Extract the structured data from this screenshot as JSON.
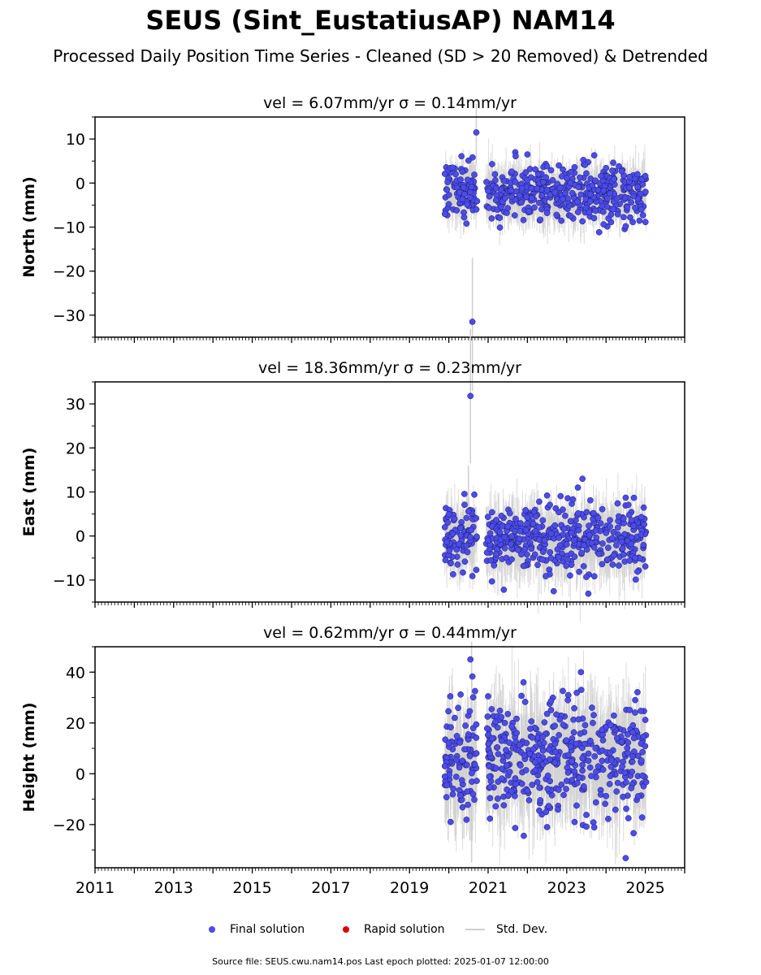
{
  "title": "SEUS (Sint_EustatiusAP) NAM14",
  "subtitle": "Processed Daily Position Time Series - Cleaned (SD > 20 Removed) & Detrended",
  "legend": {
    "final": "Final solution",
    "rapid": "Rapid solution",
    "stddev": "Std. Dev."
  },
  "footer": "Source file: SEUS.cwu.nam14.pos  Last epoch plotted: 2025-01-07 12:00:00",
  "colors": {
    "final": "#4b4bf0",
    "rapid": "#dd0000",
    "stddev": "#cfcfcf"
  },
  "chart_data": [
    {
      "type": "scatter",
      "title": "vel = 6.07mm/yr   σ = 0.14mm/yr",
      "ylabel": "North (mm)",
      "xlim": [
        2011,
        2026
      ],
      "ylim": [
        -35,
        15
      ],
      "yticks": [
        10,
        0,
        -10,
        -20,
        -30
      ],
      "ytick_labels": [
        "10",
        "0",
        "−10",
        "−20",
        "−30"
      ],
      "points": [
        [
          2019.9,
          2.1
        ],
        [
          2019.95,
          -1.5
        ],
        [
          2020.0,
          -4.8
        ],
        [
          2020.1,
          3.5
        ],
        [
          2020.2,
          -6.2
        ],
        [
          2020.3,
          0.8
        ],
        [
          2020.4,
          -2.5
        ],
        [
          2020.45,
          -9.2
        ],
        [
          2020.5,
          5.1
        ],
        [
          2020.55,
          -3.3
        ],
        [
          2020.6,
          -31.5
        ],
        [
          2020.65,
          1.9
        ],
        [
          2020.7,
          11.5
        ],
        [
          2020.72,
          -4.1
        ],
        [
          2021.0,
          -1.8
        ],
        [
          2021.1,
          4.3
        ],
        [
          2021.2,
          -3.9
        ],
        [
          2021.3,
          -10.1
        ],
        [
          2021.4,
          0.5
        ],
        [
          2021.5,
          -5.7
        ],
        [
          2021.6,
          2.6
        ],
        [
          2021.7,
          6.1
        ],
        [
          2021.8,
          -2.8
        ],
        [
          2021.9,
          -8.4
        ],
        [
          2022.0,
          6.5
        ],
        [
          2022.1,
          -1.2
        ],
        [
          2022.2,
          3.1
        ],
        [
          2022.3,
          -4.5
        ],
        [
          2022.4,
          0.2
        ],
        [
          2022.5,
          -6.8
        ],
        [
          2022.6,
          2.9
        ],
        [
          2022.7,
          -2.1
        ],
        [
          2022.8,
          4.0
        ],
        [
          2022.9,
          -3.6
        ],
        [
          2023.0,
          1.1
        ],
        [
          2023.1,
          -7.5
        ],
        [
          2023.2,
          3.6
        ],
        [
          2023.3,
          -0.9
        ],
        [
          2023.4,
          -8.7
        ],
        [
          2023.5,
          2.2
        ],
        [
          2023.6,
          -4.2
        ],
        [
          2023.7,
          6.3
        ],
        [
          2023.8,
          -1.6
        ],
        [
          2023.9,
          -5.2
        ],
        [
          2024.0,
          3.4
        ],
        [
          2024.1,
          -2.4
        ],
        [
          2024.2,
          0.9
        ],
        [
          2024.3,
          -7.1
        ],
        [
          2024.4,
          2.7
        ],
        [
          2024.5,
          -9.8
        ],
        [
          2024.6,
          1.4
        ],
        [
          2024.7,
          -3.0
        ],
        [
          2024.8,
          2.0
        ],
        [
          2024.9,
          -6.0
        ],
        [
          2025.0,
          1.6
        ]
      ],
      "err_band": [
        [
          2019.9,
          2020.72,
          -11,
          8
        ],
        [
          2020.95,
          2025.02,
          -12,
          7
        ]
      ],
      "big_err": [
        [
          2020.6,
          -47.2,
          -17.0
        ],
        [
          2020.7,
          4.5,
          18.0
        ]
      ]
    },
    {
      "type": "scatter",
      "title": "vel = 18.36mm/yr   σ = 0.23mm/yr",
      "ylabel": "East (mm)",
      "xlim": [
        2011,
        2026
      ],
      "ylim": [
        -15,
        35
      ],
      "yticks": [
        30,
        20,
        10,
        0,
        -10
      ],
      "ytick_labels": [
        "30",
        "20",
        "10",
        "0",
        "−10"
      ],
      "points": [
        [
          2019.9,
          2.0
        ],
        [
          2019.95,
          -1.4
        ],
        [
          2020.0,
          4.9
        ],
        [
          2020.05,
          -6.2
        ],
        [
          2020.1,
          0.5
        ],
        [
          2020.2,
          -3.1
        ],
        [
          2020.3,
          1.8
        ],
        [
          2020.4,
          7.1
        ],
        [
          2020.45,
          -2.2
        ],
        [
          2020.5,
          5.6
        ],
        [
          2020.55,
          31.8
        ],
        [
          2020.6,
          -9.1
        ],
        [
          2020.65,
          9.4
        ],
        [
          2020.7,
          -7.7
        ],
        [
          2021.0,
          -1.0
        ],
        [
          2021.1,
          5.4
        ],
        [
          2021.2,
          -4.1
        ],
        [
          2021.3,
          0.9
        ],
        [
          2021.4,
          -12.2
        ],
        [
          2021.5,
          2.2
        ],
        [
          2021.6,
          -5.3
        ],
        [
          2021.7,
          3.9
        ],
        [
          2021.8,
          -0.6
        ],
        [
          2021.9,
          -6.8
        ],
        [
          2022.0,
          4.2
        ],
        [
          2022.1,
          -2.9
        ],
        [
          2022.2,
          1.1
        ],
        [
          2022.3,
          7.8
        ],
        [
          2022.4,
          -3.6
        ],
        [
          2022.5,
          9.2
        ],
        [
          2022.6,
          -5.0
        ],
        [
          2022.7,
          2.4
        ],
        [
          2022.8,
          -0.4
        ],
        [
          2022.9,
          6.0
        ],
        [
          2023.0,
          -1.9
        ],
        [
          2023.1,
          3.4
        ],
        [
          2023.2,
          -4.7
        ],
        [
          2023.3,
          1.3
        ],
        [
          2023.4,
          13.0
        ],
        [
          2023.5,
          -9.3
        ],
        [
          2023.55,
          -13.1
        ],
        [
          2023.6,
          8.1
        ],
        [
          2023.7,
          -2.6
        ],
        [
          2023.8,
          4.1
        ],
        [
          2023.9,
          -6.4
        ],
        [
          2024.0,
          0.7
        ],
        [
          2024.1,
          3.6
        ],
        [
          2024.2,
          -4.4
        ],
        [
          2024.3,
          1.9
        ],
        [
          2024.4,
          -1.3
        ],
        [
          2024.5,
          8.7
        ],
        [
          2024.6,
          -5.6
        ],
        [
          2024.7,
          2.3
        ],
        [
          2024.8,
          -8.1
        ],
        [
          2024.9,
          4.3
        ],
        [
          2025.0,
          -6.9
        ]
      ],
      "err_band": [
        [
          2019.9,
          2020.72,
          -11,
          11
        ],
        [
          2020.95,
          2025.02,
          -13,
          11
        ]
      ],
      "big_err": [
        [
          2020.55,
          16.5,
          47.0
        ],
        [
          2020.5,
          -5.0,
          16.0
        ]
      ]
    },
    {
      "type": "scatter",
      "title": "vel = 0.62mm/yr   σ = 0.44mm/yr",
      "ylabel": "Height (mm)",
      "xlim": [
        2011,
        2026
      ],
      "ylim": [
        -37,
        50
      ],
      "yticks": [
        40,
        20,
        0,
        -20
      ],
      "ytick_labels": [
        "40",
        "20",
        "0",
        "−20"
      ],
      "points": [
        [
          2019.9,
          3.0
        ],
        [
          2019.95,
          -4.5
        ],
        [
          2020.0,
          12.1
        ],
        [
          2020.05,
          18.3
        ],
        [
          2020.1,
          -8.1
        ],
        [
          2020.15,
          22.0
        ],
        [
          2020.2,
          5.4
        ],
        [
          2020.3,
          31.2
        ],
        [
          2020.35,
          -13.2
        ],
        [
          2020.4,
          9.6
        ],
        [
          2020.45,
          -18.1
        ],
        [
          2020.5,
          15.5
        ],
        [
          2020.55,
          45.0
        ],
        [
          2020.6,
          38.3
        ],
        [
          2020.62,
          30.1
        ],
        [
          2020.65,
          -10.2
        ],
        [
          2020.7,
          19.4
        ],
        [
          2021.0,
          30.5
        ],
        [
          2021.05,
          -9.6
        ],
        [
          2021.1,
          14.0
        ],
        [
          2021.2,
          2.2
        ],
        [
          2021.3,
          24.8
        ],
        [
          2021.4,
          -12.4
        ],
        [
          2021.5,
          6.9
        ],
        [
          2021.6,
          18.6
        ],
        [
          2021.7,
          -4.1
        ],
        [
          2021.8,
          11.3
        ],
        [
          2021.9,
          36.0
        ],
        [
          2022.0,
          -6.7
        ],
        [
          2022.1,
          20.6
        ],
        [
          2022.2,
          1.3
        ],
        [
          2022.3,
          -14.5
        ],
        [
          2022.4,
          9.1
        ],
        [
          2022.5,
          -21.0
        ],
        [
          2022.6,
          28.6
        ],
        [
          2022.7,
          4.4
        ],
        [
          2022.8,
          15.2
        ],
        [
          2022.9,
          32.6
        ],
        [
          2023.0,
          -2.8
        ],
        [
          2023.1,
          10.7
        ],
        [
          2023.2,
          -19.0
        ],
        [
          2023.3,
          21.4
        ],
        [
          2023.4,
          6.1
        ],
        [
          2023.5,
          -16.2
        ],
        [
          2023.6,
          13.0
        ],
        [
          2023.7,
          -21.1
        ],
        [
          2023.8,
          2.9
        ],
        [
          2023.9,
          17.3
        ],
        [
          2024.0,
          -8.8
        ],
        [
          2024.1,
          8.2
        ],
        [
          2024.2,
          22.9
        ],
        [
          2024.3,
          -3.6
        ],
        [
          2024.4,
          12.6
        ],
        [
          2024.5,
          -33.2
        ],
        [
          2024.6,
          25.1
        ],
        [
          2024.7,
          -23.4
        ],
        [
          2024.8,
          32.1
        ],
        [
          2024.9,
          5.2
        ],
        [
          2025.0,
          21.2
        ],
        [
          2025.02,
          -3.3
        ]
      ],
      "err_band": [
        [
          2019.9,
          2020.72,
          -30,
          38
        ],
        [
          2020.95,
          2025.02,
          -28,
          40
        ]
      ],
      "big_err": [
        [
          2020.58,
          -35.0,
          52.0
        ]
      ]
    }
  ],
  "xticks": [
    2011,
    2013,
    2015,
    2017,
    2019,
    2021,
    2023,
    2025
  ]
}
